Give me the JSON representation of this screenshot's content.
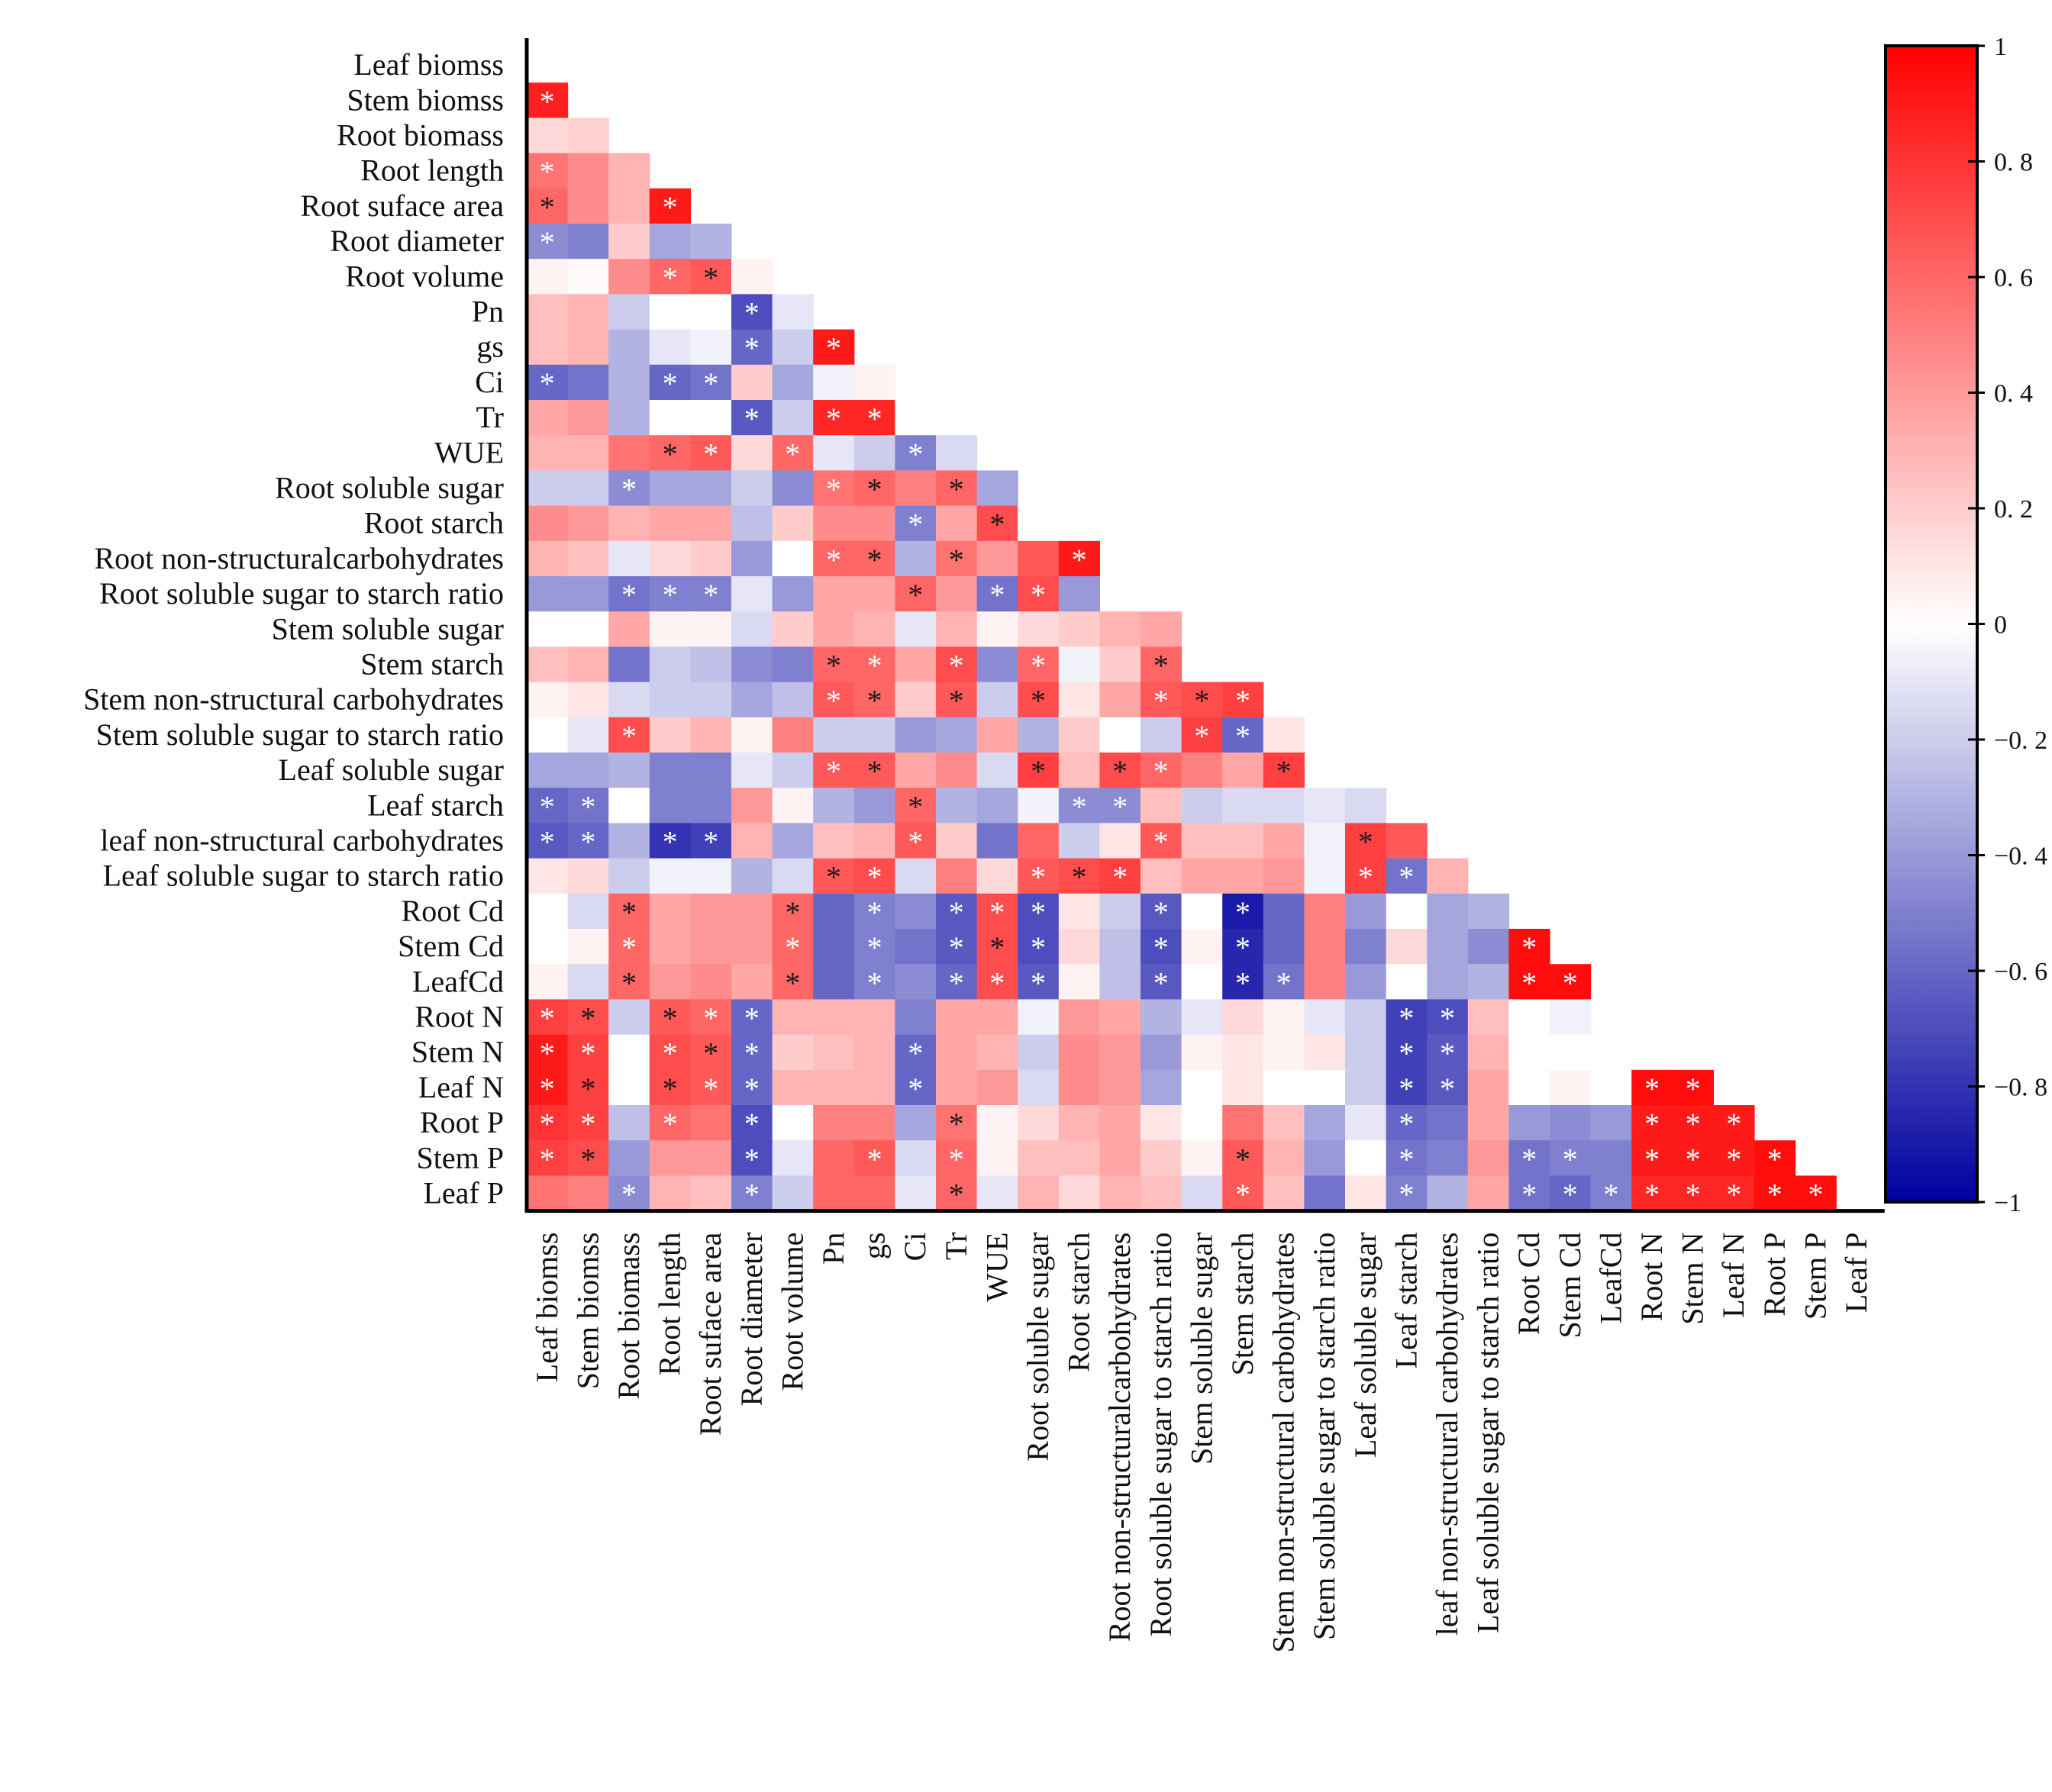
{
  "chart_data": {
    "type": "heatmap",
    "title": "",
    "variables": [
      "Leaf biomss",
      "Stem biomss",
      "Root biomass",
      "Root length",
      "Root suface area",
      "Root diameter",
      "Root volume",
      "Pn",
      "gs",
      "Ci",
      "Tr",
      "WUE",
      "Root soluble sugar",
      "Root starch",
      "Root non-structuralcarbohydrates",
      "Root soluble sugar to starch ratio",
      "Stem soluble sugar",
      "Stem starch",
      "Stem non-structural carbohydrates",
      "Stem soluble sugar to starch ratio",
      "Leaf soluble sugar",
      "Leaf starch",
      "leaf non-structural carbohydrates",
      "Leaf soluble sugar to starch ratio",
      "Root Cd",
      "Stem Cd",
      "LeafCd",
      "Root N",
      "Stem N",
      "Leaf N",
      "Root P",
      "Stem P",
      "Leaf P"
    ],
    "x_labels": [
      "Leaf biomss",
      "Stem biomss",
      "Root biomass",
      "Root length",
      "Root suface area",
      "Root diameter",
      "Root volume",
      "Pn",
      "gs",
      "Ci",
      "Tr",
      "WUE",
      "Root soluble sugar",
      "Root starch",
      "Root non-structuralcarbohydrates",
      "Root soluble sugar to starch ratio",
      "Stem soluble sugar",
      "Stem starch",
      "Stem non-structural carbohydrates",
      "Stem soluble sugar to starch ratio",
      "Leaf soluble sugar",
      "Leaf starch",
      "leaf non-structural carbohydrates",
      "Leaf soluble sugar to starch ratio",
      "Root Cd",
      "Stem Cd",
      "LeafCd",
      "Root N",
      "Stem N",
      "Leaf N",
      "Root P",
      "Stem P",
      "Leaf P"
    ],
    "significance_marker": "*",
    "colorbar": {
      "min": -1,
      "max": 1,
      "ticks": [
        1,
        0.8,
        0.6,
        0.4,
        0.2,
        0,
        -0.2,
        -0.4,
        -0.6,
        -0.8,
        -1
      ],
      "tick_labels": [
        "1",
        "0. 8",
        "0. 6",
        "0. 4",
        "0. 2",
        "0",
        "−0. 2",
        "−0. 4",
        "−0. 6",
        "−0. 8",
        "−1"
      ],
      "low_color": "#0000a0",
      "mid_color": "#ffffff",
      "high_color": "#ff0000"
    },
    "matrix": [
      [],
      [
        0.88
      ],
      [
        0.15,
        0.18
      ],
      [
        0.55,
        0.45,
        0.3
      ],
      [
        0.6,
        0.45,
        0.3,
        0.9
      ],
      [
        -0.45,
        -0.5,
        0.2,
        -0.35,
        -0.3
      ],
      [
        0.05,
        0.02,
        0.45,
        0.6,
        0.65,
        0.05
      ],
      [
        0.25,
        0.3,
        -0.2,
        0,
        0,
        -0.7,
        -0.1
      ],
      [
        0.25,
        0.3,
        -0.3,
        -0.1,
        -0.05,
        -0.6,
        -0.2,
        0.9
      ],
      [
        -0.6,
        -0.55,
        -0.3,
        -0.6,
        -0.55,
        0.2,
        -0.35,
        -0.05,
        0.05
      ],
      [
        0.35,
        0.4,
        -0.3,
        0,
        0,
        -0.65,
        -0.2,
        0.85,
        0.85,
        0
      ],
      [
        0.3,
        0.3,
        0.55,
        0.6,
        0.65,
        0.15,
        0.6,
        -0.1,
        -0.2,
        -0.5,
        -0.15
      ],
      [
        -0.2,
        -0.2,
        -0.45,
        -0.35,
        -0.35,
        -0.2,
        -0.45,
        0.55,
        0.6,
        0.5,
        0.6,
        -0.35
      ],
      [
        0.45,
        0.4,
        0.3,
        0.35,
        0.35,
        -0.25,
        0.2,
        0.45,
        0.45,
        -0.5,
        0.35,
        0.7,
        0
      ],
      [
        0.3,
        0.25,
        -0.1,
        0.15,
        0.2,
        -0.4,
        0,
        0.6,
        0.6,
        -0.3,
        0.55,
        0.4,
        0.65,
        0.9
      ],
      [
        -0.4,
        -0.4,
        -0.55,
        -0.5,
        -0.5,
        -0.1,
        -0.4,
        0.35,
        0.35,
        0.6,
        0.4,
        -0.55,
        0.7,
        -0.4
      ],
      [
        0,
        0,
        0.35,
        0.05,
        0.05,
        -0.15,
        0.2,
        0.35,
        0.3,
        -0.1,
        0.3,
        0.05,
        0.15,
        0.2,
        0.3,
        0.35
      ],
      [
        0.25,
        0.3,
        -0.55,
        -0.2,
        -0.25,
        -0.45,
        -0.5,
        0.6,
        0.6,
        0.35,
        0.7,
        -0.45,
        0.6,
        -0.05,
        0.2,
        0.6
      ],
      [
        0.05,
        0.1,
        -0.15,
        -0.2,
        -0.2,
        -0.35,
        -0.25,
        0.65,
        0.6,
        0.2,
        0.65,
        -0.2,
        0.7,
        0.1,
        0.35,
        0.65,
        0.7,
        0.75
      ],
      [
        0,
        -0.1,
        0.7,
        0.2,
        0.3,
        0.05,
        0.5,
        -0.2,
        -0.2,
        -0.4,
        -0.35,
        0.35,
        -0.3,
        0.2,
        0,
        -0.2,
        0.75,
        -0.6,
        0.1
      ],
      [
        -0.35,
        -0.35,
        -0.3,
        -0.5,
        -0.5,
        -0.1,
        -0.2,
        0.65,
        0.65,
        0.35,
        0.45,
        -0.15,
        0.75,
        0.25,
        0.7,
        0.6,
        0.5,
        0.35,
        0.75
      ],
      [
        -0.6,
        -0.55,
        0,
        -0.5,
        -0.5,
        0.4,
        0.05,
        -0.3,
        -0.4,
        0.6,
        -0.3,
        -0.35,
        -0.05,
        -0.45,
        -0.45,
        0.25,
        -0.2,
        -0.15,
        -0.15,
        -0.1,
        -0.15
      ],
      [
        -0.65,
        -0.6,
        -0.3,
        -0.8,
        -0.75,
        0.3,
        -0.35,
        0.25,
        0.3,
        0.65,
        0.2,
        -0.55,
        0.6,
        -0.2,
        0.1,
        0.65,
        0.25,
        0.25,
        0.35,
        -0.05,
        0.75,
        0.65
      ],
      [
        0.1,
        0.15,
        -0.2,
        -0.05,
        -0.05,
        -0.3,
        -0.15,
        0.65,
        0.7,
        -0.15,
        0.5,
        0.15,
        0.65,
        0.7,
        0.75,
        0.25,
        0.35,
        0.35,
        0.4,
        -0.05,
        0.75,
        -0.55,
        0.3
      ],
      [
        0,
        -0.15,
        0.6,
        0.35,
        0.4,
        0.4,
        0.6,
        -0.6,
        -0.5,
        -0.45,
        -0.65,
        0.7,
        -0.7,
        0.1,
        -0.2,
        -0.65,
        0,
        -0.9,
        -0.6,
        0.5,
        -0.4,
        0,
        -0.35,
        -0.3
      ],
      [
        0,
        0.05,
        0.6,
        0.35,
        0.4,
        0.4,
        0.6,
        -0.6,
        -0.5,
        -0.55,
        -0.65,
        0.7,
        -0.7,
        0.15,
        -0.25,
        -0.7,
        0.05,
        -0.85,
        -0.6,
        0.5,
        -0.5,
        0.15,
        -0.35,
        -0.45,
        0.95
      ],
      [
        0.05,
        -0.15,
        0.6,
        0.4,
        0.45,
        0.35,
        0.6,
        -0.6,
        -0.5,
        -0.45,
        -0.6,
        0.7,
        -0.65,
        0.05,
        -0.25,
        -0.65,
        0,
        -0.85,
        -0.55,
        0.5,
        -0.4,
        0,
        -0.35,
        -0.3,
        0.95,
        0.95
      ],
      [
        0.75,
        0.7,
        -0.2,
        0.65,
        0.6,
        -0.6,
        0.3,
        0.3,
        0.3,
        -0.5,
        0.35,
        0.35,
        -0.05,
        0.4,
        0.35,
        -0.3,
        -0.1,
        0.15,
        0.05,
        -0.1,
        -0.2,
        -0.75,
        -0.7,
        0.25,
        0,
        -0.05
      ],
      [
        0.9,
        0.75,
        0,
        0.7,
        0.65,
        -0.6,
        0.2,
        0.25,
        0.3,
        -0.6,
        0.35,
        0.3,
        -0.2,
        0.45,
        0.4,
        -0.4,
        0.05,
        0.1,
        0.05,
        0.1,
        -0.2,
        -0.75,
        -0.65,
        0.3,
        0,
        0,
        0
      ],
      [
        0.9,
        0.75,
        0,
        0.7,
        0.65,
        -0.6,
        0.3,
        0.3,
        0.3,
        -0.6,
        0.35,
        0.4,
        -0.15,
        0.45,
        0.4,
        -0.35,
        0,
        0.1,
        0,
        0,
        -0.2,
        -0.75,
        -0.65,
        0.35,
        0,
        0.05,
        0,
        0.95,
        0.95
      ],
      [
        0.8,
        0.75,
        -0.25,
        0.6,
        0.55,
        -0.7,
        0,
        0.5,
        0.5,
        -0.35,
        0.55,
        0.05,
        0.15,
        0.3,
        0.35,
        0.1,
        0,
        0.55,
        0.25,
        -0.35,
        -0.1,
        -0.6,
        -0.55,
        0.35,
        -0.4,
        -0.45,
        -0.4,
        0.9,
        0.9,
        0.9
      ],
      [
        0.75,
        0.7,
        -0.4,
        0.4,
        0.4,
        -0.7,
        -0.1,
        0.6,
        0.65,
        -0.15,
        0.6,
        0.05,
        0.25,
        0.25,
        0.35,
        0.2,
        0.05,
        0.65,
        0.3,
        -0.4,
        0,
        -0.55,
        -0.5,
        0.4,
        -0.55,
        -0.5,
        -0.5,
        0.9,
        0.9,
        0.9,
        0.95
      ],
      [
        0.55,
        0.5,
        -0.45,
        0.3,
        0.25,
        -0.5,
        -0.2,
        0.6,
        0.6,
        -0.1,
        0.6,
        -0.1,
        0.3,
        0.15,
        0.3,
        0.25,
        -0.15,
        0.65,
        0.25,
        -0.55,
        0.1,
        -0.5,
        -0.3,
        0.35,
        -0.55,
        -0.6,
        -0.5,
        0.85,
        0.85,
        0.85,
        0.95,
        0.95
      ]
    ],
    "significant": [
      [],
      [
        1
      ],
      [
        0,
        0
      ],
      [
        1,
        0,
        0
      ],
      [
        1,
        0,
        0,
        1
      ],
      [
        1,
        0,
        0,
        0,
        0
      ],
      [
        0,
        0,
        0,
        1,
        1,
        0
      ],
      [
        0,
        0,
        0,
        0,
        0,
        1,
        0
      ],
      [
        0,
        0,
        0,
        0,
        0,
        1,
        0,
        1
      ],
      [
        1,
        0,
        0,
        1,
        1,
        0,
        0,
        0,
        0
      ],
      [
        0,
        0,
        0,
        0,
        0,
        1,
        0,
        1,
        1,
        0
      ],
      [
        0,
        0,
        0,
        1,
        1,
        0,
        1,
        0,
        0,
        1,
        0
      ],
      [
        0,
        0,
        1,
        0,
        0,
        0,
        0,
        1,
        1,
        0,
        1,
        0
      ],
      [
        0,
        0,
        0,
        0,
        0,
        0,
        0,
        0,
        0,
        1,
        0,
        1,
        0
      ],
      [
        0,
        0,
        0,
        0,
        0,
        0,
        0,
        1,
        1,
        0,
        1,
        0,
        0,
        1
      ],
      [
        0,
        0,
        1,
        1,
        1,
        0,
        0,
        0,
        0,
        1,
        0,
        1,
        1,
        0
      ],
      [
        0,
        0,
        0,
        0,
        0,
        0,
        0,
        0,
        0,
        0,
        0,
        0,
        0,
        0,
        0,
        0
      ],
      [
        0,
        0,
        0,
        0,
        0,
        0,
        0,
        1,
        1,
        0,
        1,
        0,
        1,
        0,
        0,
        1
      ],
      [
        0,
        0,
        0,
        0,
        0,
        0,
        0,
        1,
        1,
        0,
        1,
        0,
        1,
        0,
        0,
        1,
        1,
        1
      ],
      [
        0,
        0,
        1,
        0,
        0,
        0,
        0,
        0,
        0,
        0,
        0,
        0,
        0,
        0,
        0,
        0,
        1,
        1,
        0
      ],
      [
        0,
        0,
        0,
        0,
        0,
        0,
        0,
        1,
        1,
        0,
        0,
        0,
        1,
        0,
        1,
        1,
        0,
        0,
        1
      ],
      [
        1,
        1,
        0,
        0,
        0,
        0,
        0,
        0,
        0,
        1,
        0,
        0,
        0,
        1,
        1,
        0,
        0,
        0,
        0,
        0,
        0
      ],
      [
        1,
        1,
        0,
        1,
        1,
        0,
        0,
        0,
        0,
        1,
        0,
        0,
        0,
        0,
        0,
        1,
        0,
        0,
        0,
        0,
        1,
        0
      ],
      [
        0,
        0,
        0,
        0,
        0,
        0,
        0,
        1,
        1,
        0,
        0,
        0,
        1,
        1,
        1,
        0,
        0,
        0,
        0,
        0,
        1,
        1,
        0
      ],
      [
        0,
        0,
        1,
        0,
        0,
        0,
        1,
        0,
        1,
        0,
        1,
        1,
        1,
        0,
        0,
        1,
        0,
        1,
        0,
        0,
        0,
        0,
        0,
        0
      ],
      [
        0,
        0,
        1,
        0,
        0,
        0,
        1,
        0,
        1,
        0,
        1,
        1,
        1,
        0,
        0,
        1,
        0,
        1,
        0,
        0,
        0,
        0,
        0,
        0,
        1
      ],
      [
        0,
        0,
        1,
        0,
        0,
        0,
        1,
        0,
        1,
        0,
        1,
        1,
        1,
        0,
        0,
        1,
        0,
        1,
        1,
        0,
        0,
        0,
        0,
        0,
        1,
        1
      ],
      [
        1,
        1,
        0,
        1,
        1,
        1,
        0,
        0,
        0,
        0,
        0,
        0,
        0,
        0,
        0,
        0,
        0,
        0,
        0,
        0,
        0,
        1,
        1,
        0,
        0,
        0
      ],
      [
        1,
        1,
        0,
        1,
        1,
        1,
        0,
        0,
        0,
        1,
        0,
        0,
        0,
        0,
        0,
        0,
        0,
        0,
        0,
        0,
        0,
        1,
        1,
        0,
        0,
        0,
        0
      ],
      [
        1,
        1,
        0,
        1,
        1,
        1,
        0,
        0,
        0,
        1,
        0,
        0,
        0,
        0,
        0,
        0,
        0,
        0,
        0,
        0,
        0,
        1,
        1,
        0,
        0,
        0,
        0,
        1,
        1
      ],
      [
        1,
        1,
        0,
        1,
        0,
        1,
        0,
        0,
        0,
        0,
        1,
        0,
        0,
        0,
        0,
        0,
        0,
        0,
        0,
        0,
        0,
        1,
        0,
        0,
        0,
        0,
        0,
        1,
        1,
        1
      ],
      [
        1,
        1,
        0,
        0,
        0,
        1,
        0,
        0,
        1,
        0,
        1,
        0,
        0,
        0,
        0,
        0,
        0,
        1,
        0,
        0,
        0,
        1,
        0,
        0,
        1,
        1,
        0,
        1,
        1,
        1,
        1
      ],
      [
        0,
        0,
        1,
        0,
        0,
        1,
        0,
        0,
        0,
        0,
        1,
        0,
        0,
        0,
        0,
        0,
        0,
        1,
        0,
        0,
        0,
        1,
        0,
        0,
        1,
        1,
        1,
        1,
        1,
        1,
        1,
        1
      ]
    ]
  }
}
